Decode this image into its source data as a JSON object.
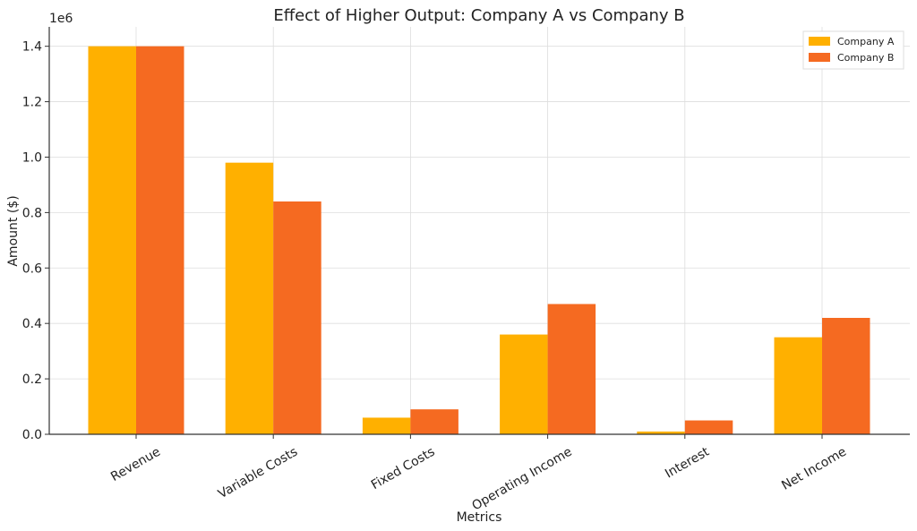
{
  "chart_data": {
    "type": "bar",
    "title": "Effect of Higher Output: Company A vs Company B",
    "xlabel": "Metrics",
    "ylabel": "Amount ($)",
    "y_offset_text": "1e6",
    "categories": [
      "Revenue",
      "Variable Costs",
      "Fixed Costs",
      "Operating Income",
      "Interest",
      "Net Income"
    ],
    "series": [
      {
        "name": "Company A",
        "color": "#FFB000",
        "values": [
          1400000,
          980000,
          60000,
          360000,
          10000,
          350000
        ]
      },
      {
        "name": "Company B",
        "color": "#F56A21",
        "values": [
          1400000,
          840000,
          90000,
          470000,
          50000,
          420000
        ]
      }
    ],
    "ylim": [
      0,
      1470000
    ],
    "yticks": [
      0,
      200000,
      400000,
      600000,
      800000,
      1000000,
      1200000,
      1400000
    ],
    "ytick_labels": [
      "0.0",
      "0.2",
      "0.4",
      "0.6",
      "0.8",
      "1.0",
      "1.2",
      "1.4"
    ],
    "grid": true,
    "legend_position": "top-right"
  }
}
